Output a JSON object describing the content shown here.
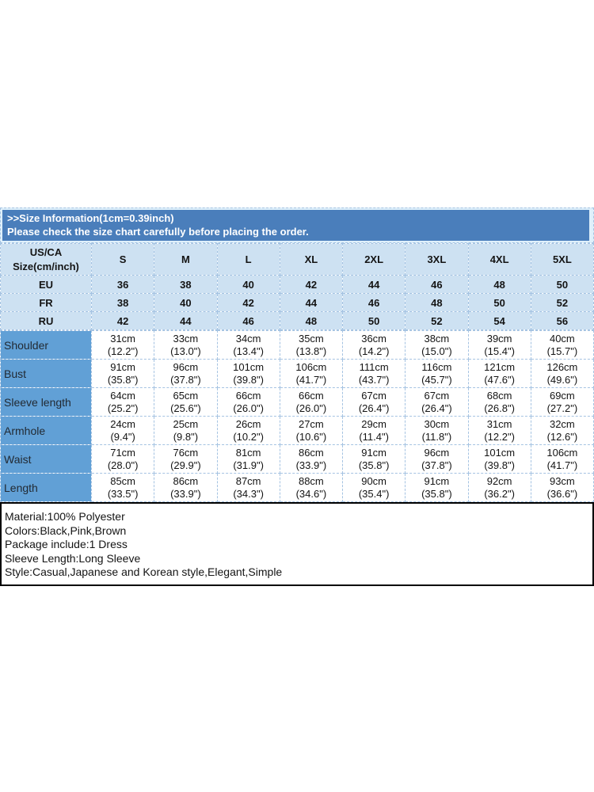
{
  "banner": {
    "line1": ">>Size Information(1cm=0.39inch)",
    "line2": "Please check the size chart carefully before placing the order."
  },
  "size_table": {
    "corner_line1": "US/CA",
    "corner_line2": "Size(cm/inch)",
    "columns": [
      "S",
      "M",
      "L",
      "XL",
      "2XL",
      "3XL",
      "4XL",
      "5XL"
    ],
    "rows": [
      {
        "label": "EU",
        "values": [
          "36",
          "38",
          "40",
          "42",
          "44",
          "46",
          "48",
          "50"
        ]
      },
      {
        "label": "FR",
        "values": [
          "38",
          "40",
          "42",
          "44",
          "46",
          "48",
          "50",
          "52"
        ]
      },
      {
        "label": "RU",
        "values": [
          "42",
          "44",
          "46",
          "48",
          "50",
          "52",
          "54",
          "56"
        ]
      }
    ]
  },
  "measurement_table": {
    "rows": [
      {
        "label": "Shoulder",
        "cm": [
          "31cm",
          "33cm",
          "34cm",
          "35cm",
          "36cm",
          "38cm",
          "39cm",
          "40cm"
        ],
        "inch": [
          "(12.2\")",
          "(13.0\")",
          "(13.4\")",
          "(13.8\")",
          "(14.2\")",
          "(15.0\")",
          "(15.4\")",
          "(15.7\")"
        ]
      },
      {
        "label": "Bust",
        "cm": [
          "91cm",
          "96cm",
          "101cm",
          "106cm",
          "111cm",
          "116cm",
          "121cm",
          "126cm"
        ],
        "inch": [
          "(35.8\")",
          "(37.8\")",
          "(39.8\")",
          "(41.7\")",
          "(43.7\")",
          "(45.7\")",
          "(47.6\")",
          "(49.6\")"
        ]
      },
      {
        "label": "Sleeve length",
        "cm": [
          "64cm",
          "65cm",
          "66cm",
          "66cm",
          "67cm",
          "67cm",
          "68cm",
          "69cm"
        ],
        "inch": [
          "(25.2\")",
          "(25.6\")",
          "(26.0\")",
          "(26.0\")",
          "(26.4\")",
          "(26.4\")",
          "(26.8\")",
          "(27.2\")"
        ]
      },
      {
        "label": "Armhole",
        "cm": [
          "24cm",
          "25cm",
          "26cm",
          "27cm",
          "29cm",
          "30cm",
          "31cm",
          "32cm"
        ],
        "inch": [
          "(9.4\")",
          "(9.8\")",
          "(10.2\")",
          "(10.6\")",
          "(11.4\")",
          "(11.8\")",
          "(12.2\")",
          "(12.6\")"
        ]
      },
      {
        "label": "Waist",
        "cm": [
          "71cm",
          "76cm",
          "81cm",
          "86cm",
          "91cm",
          "96cm",
          "101cm",
          "106cm"
        ],
        "inch": [
          "(28.0\")",
          "(29.9\")",
          "(31.9\")",
          "(33.9\")",
          "(35.8\")",
          "(37.8\")",
          "(39.8\")",
          "(41.7\")"
        ]
      },
      {
        "label": "Length",
        "cm": [
          "85cm",
          "86cm",
          "87cm",
          "88cm",
          "90cm",
          "91cm",
          "92cm",
          "93cm"
        ],
        "inch": [
          "(33.5\")",
          "(33.9\")",
          "(34.3\")",
          "(34.6\")",
          "(35.4\")",
          "(35.8\")",
          "(36.2\")",
          "(36.6\")"
        ]
      }
    ]
  },
  "details": {
    "lines": [
      "Material:100% Polyester",
      "Colors:Black,Pink,Brown",
      "Package include:1 Dress",
      "Sleeve Length:Long Sleeve",
      "Style:Casual,Japanese and Korean style,Elegant,Simple"
    ]
  },
  "colors": {
    "banner_bg": "#4a7ebb",
    "banner_text": "#ffffff",
    "light_cell_bg": "#cde1f2",
    "label_cell_bg": "#61a0d6",
    "grid_line": "#a5c3e2",
    "details_border": "#000000",
    "text": "#141414"
  }
}
